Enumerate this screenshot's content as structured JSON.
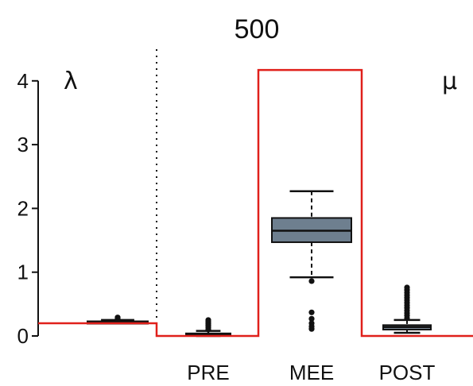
{
  "chart_data": {
    "type": "box",
    "title": "500",
    "panel_labels": {
      "left": "λ",
      "right": "μ"
    },
    "y_ticks": [
      "0",
      "1",
      "2",
      "3",
      "4"
    ],
    "ylim": [
      -0.15,
      4.5
    ],
    "categories": [
      "PRE",
      "MEE",
      "POST"
    ],
    "boxes": [
      {
        "name": "λ",
        "label": "",
        "median": 0.22,
        "q1": 0.21,
        "q3": 0.23,
        "whisker_low": 0.2,
        "whisker_high": 0.25,
        "outliers": [
          0.27,
          0.29
        ],
        "fill": "#9aa8b4"
      },
      {
        "name": "PRE",
        "label": "PRE",
        "median": 0.02,
        "q1": 0.01,
        "q3": 0.04,
        "whisker_low": 0.0,
        "whisker_high": 0.08,
        "outliers": [
          0.1,
          0.13,
          0.16,
          0.19,
          0.22,
          0.25
        ],
        "fill": "#9aa8b4"
      },
      {
        "name": "MEE",
        "label": "MEE",
        "median": 1.65,
        "q1": 1.47,
        "q3": 1.85,
        "whisker_low": 0.92,
        "whisker_high": 2.27,
        "outliers": [
          0.86,
          0.37,
          0.27,
          0.2,
          0.15,
          0.11
        ],
        "fill": "#6e7f8f"
      },
      {
        "name": "POST",
        "label": "POST",
        "median": 0.14,
        "q1": 0.1,
        "q3": 0.17,
        "whisker_low": 0.05,
        "whisker_high": 0.25,
        "outliers": [
          0.28,
          0.32,
          0.36,
          0.4,
          0.44,
          0.48,
          0.52,
          0.56,
          0.6,
          0.64,
          0.68,
          0.72,
          0.76
        ],
        "fill": "#7d8c9a"
      }
    ],
    "true_value_line": {
      "color": "#e0201b",
      "segments": [
        {
          "x_from": "left-edge",
          "x_to": "λ|PRE",
          "value": 0.2
        },
        {
          "x_from": "λ|PRE",
          "x_to": "PRE|MEE",
          "value": 0.0
        },
        {
          "x_from": "PRE|MEE",
          "x_to": "MEE|POST",
          "value": 4.17
        },
        {
          "x_from": "MEE|POST",
          "x_to": "right-edge",
          "value": 0.0
        }
      ]
    },
    "divider": "dotted vertical line between λ and PRE",
    "grid": false
  }
}
